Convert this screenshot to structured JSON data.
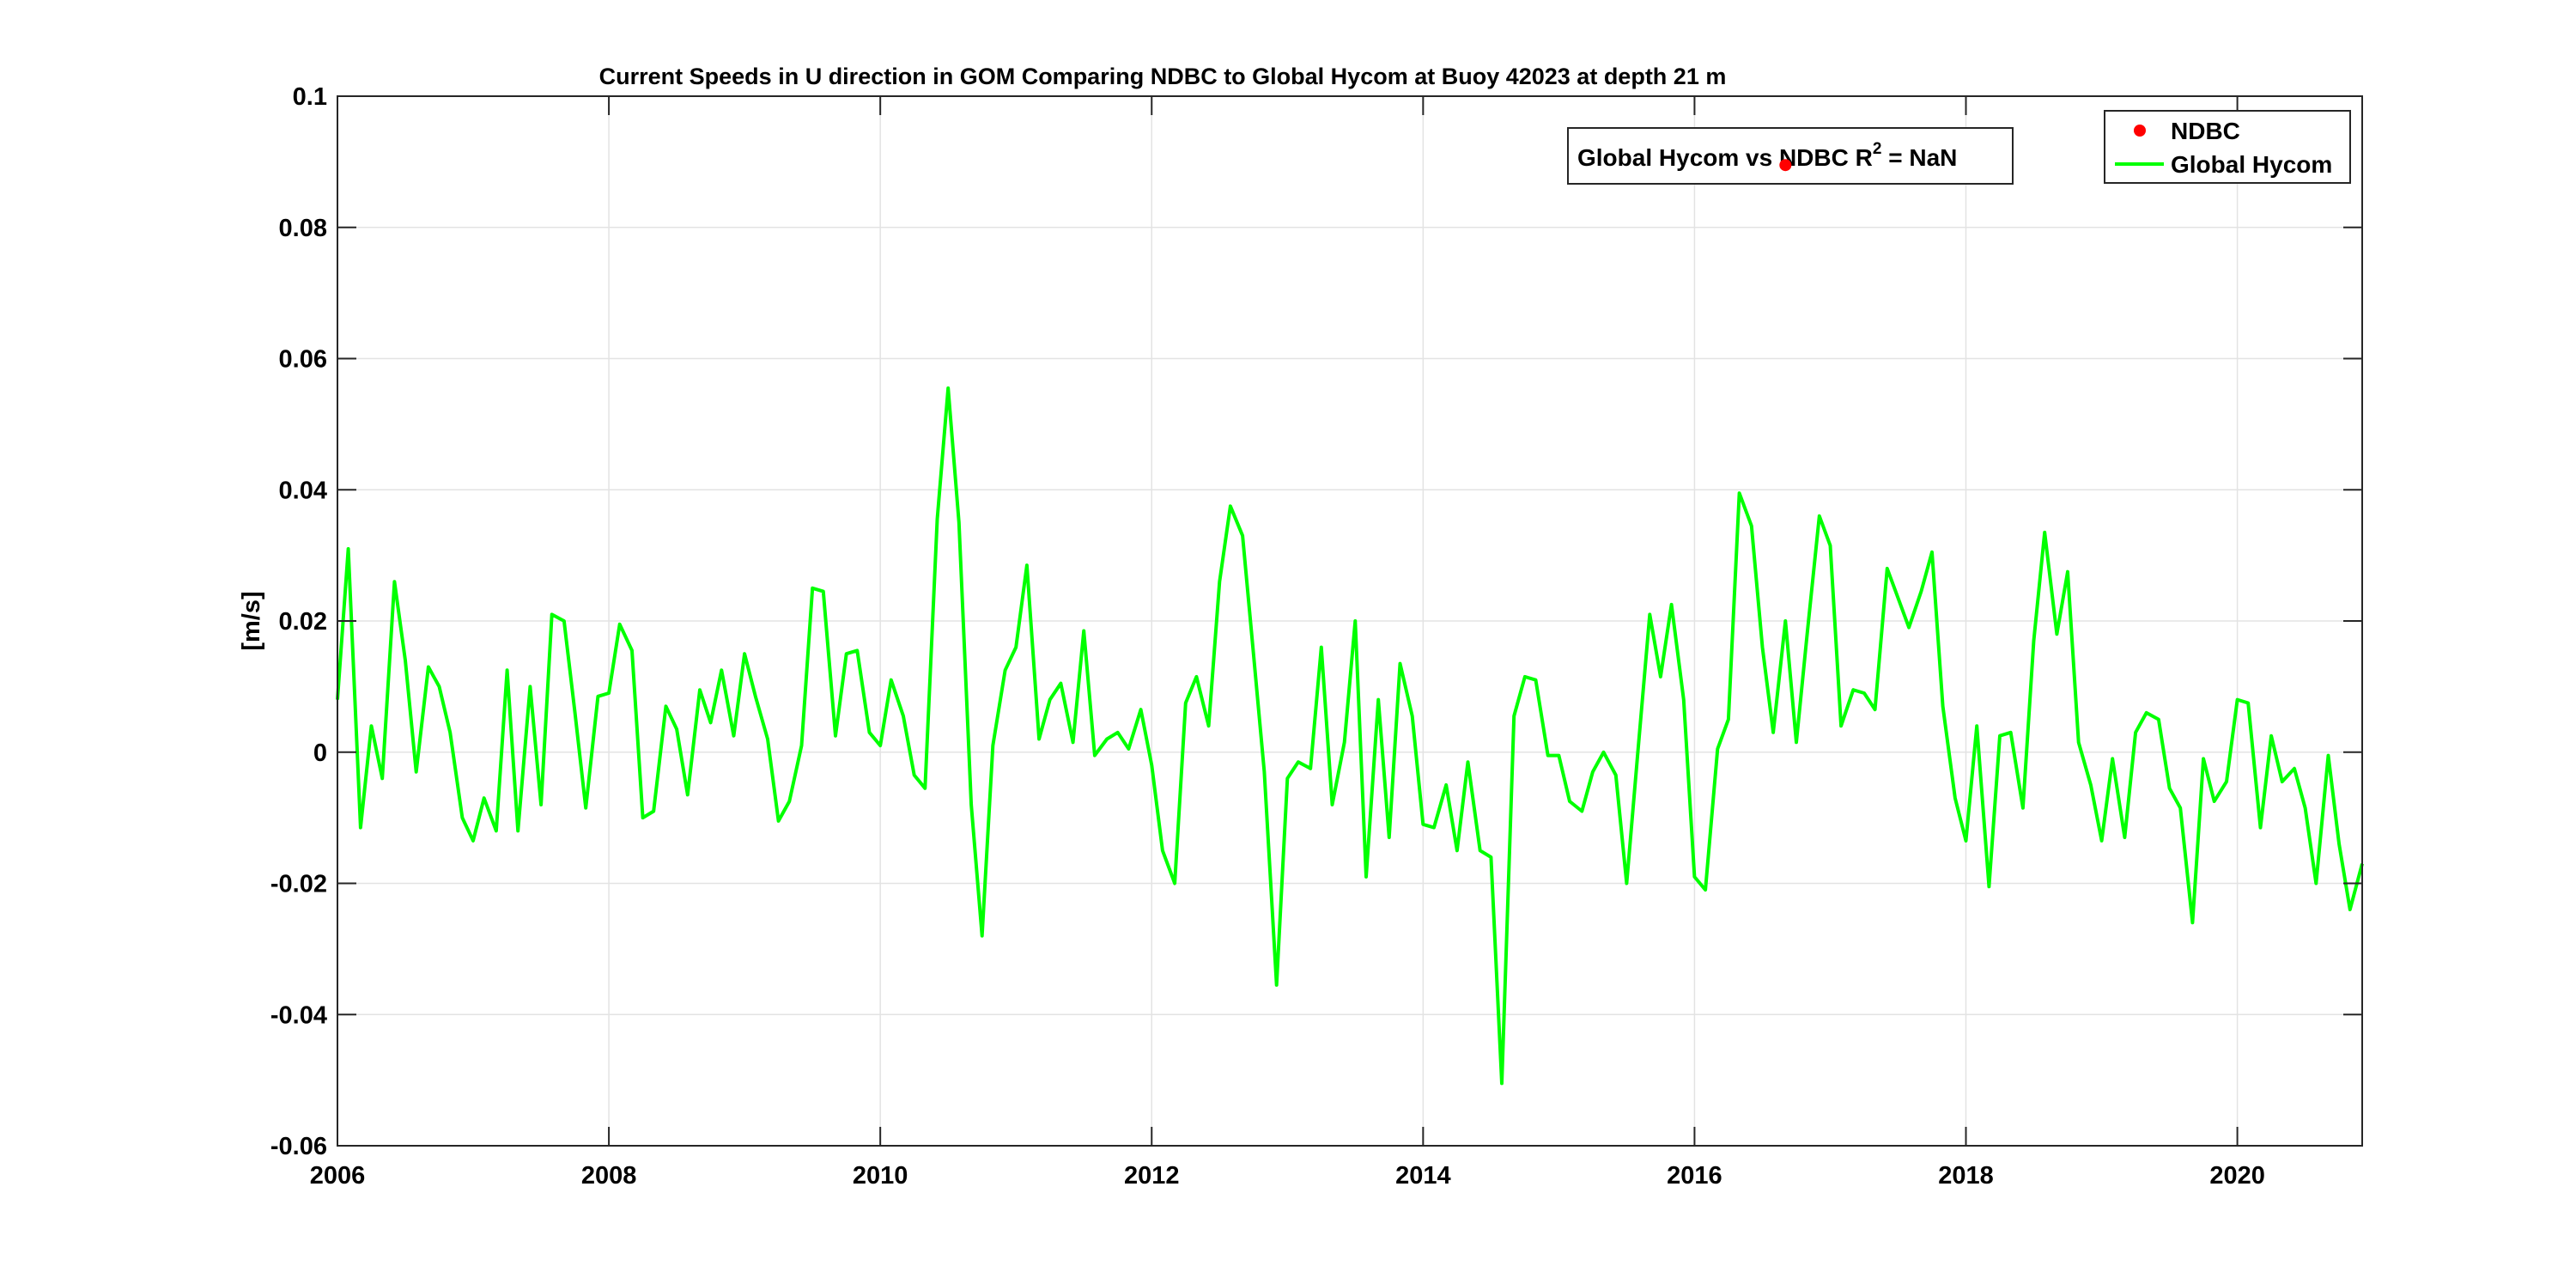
{
  "chart_data": {
    "type": "line",
    "title": "Current Speeds in U direction in GOM Comparing NDBC to Global Hycom at Buoy  42023  at depth  21 m",
    "xlabel": "",
    "ylabel": "[m/s]",
    "xlim": [
      2006,
      2020.92
    ],
    "ylim": [
      -0.06,
      0.1
    ],
    "grid": true,
    "legend_position": "top-right",
    "x_ticks": [
      "2006",
      "2008",
      "2010",
      "2012",
      "2014",
      "2016",
      "2018",
      "2020"
    ],
    "y_ticks": [
      "0.1",
      "0.08",
      "0.06",
      "0.04",
      "0.02",
      "0",
      "-0.02",
      "-0.04",
      "-0.06"
    ],
    "annotation": {
      "label": "Global Hycom vs NDBC R",
      "superscript": "2",
      "suffix": " = NaN"
    },
    "legend": [
      "NDBC",
      "Global Hycom"
    ],
    "series": [
      {
        "name": "NDBC",
        "style": "marker",
        "color": "#ff0000",
        "points": [
          [
            2016.67,
            0.0895
          ]
        ]
      },
      {
        "name": "Global Hycom",
        "style": "line",
        "color": "#00ff00",
        "x": [
          2006.0,
          2006.08,
          2006.17,
          2006.25,
          2006.33,
          2006.42,
          2006.5,
          2006.58,
          2006.67,
          2006.75,
          2006.83,
          2006.92,
          2007.0,
          2007.08,
          2007.17,
          2007.25,
          2007.33,
          2007.42,
          2007.5,
          2007.58,
          2007.67,
          2007.75,
          2007.83,
          2007.92,
          2008.0,
          2008.08,
          2008.17,
          2008.25,
          2008.33,
          2008.42,
          2008.5,
          2008.58,
          2008.67,
          2008.75,
          2008.83,
          2008.92,
          2009.0,
          2009.08,
          2009.17,
          2009.25,
          2009.33,
          2009.42,
          2009.5,
          2009.58,
          2009.67,
          2009.75,
          2009.83,
          2009.92,
          2010.0,
          2010.08,
          2010.17,
          2010.25,
          2010.33,
          2010.42,
          2010.5,
          2010.58,
          2010.67,
          2010.75,
          2010.83,
          2010.92,
          2011.0,
          2011.08,
          2011.17,
          2011.25,
          2011.33,
          2011.42,
          2011.5,
          2011.58,
          2011.67,
          2011.75,
          2011.83,
          2011.92,
          2012.0,
          2012.08,
          2012.17,
          2012.25,
          2012.33,
          2012.42,
          2012.5,
          2012.58,
          2012.67,
          2012.75,
          2012.83,
          2012.92,
          2013.0,
          2013.08,
          2013.17,
          2013.25,
          2013.33,
          2013.42,
          2013.5,
          2013.58,
          2013.67,
          2013.75,
          2013.83,
          2013.92,
          2014.0,
          2014.08,
          2014.17,
          2014.25,
          2014.33,
          2014.42,
          2014.5,
          2014.58,
          2014.67,
          2014.75,
          2014.83,
          2014.92,
          2015.0,
          2015.08,
          2015.17,
          2015.25,
          2015.33,
          2015.42,
          2015.5,
          2015.58,
          2015.67,
          2015.75,
          2015.83,
          2015.92,
          2016.0,
          2016.08,
          2016.17,
          2016.25,
          2016.33,
          2016.42,
          2016.5,
          2016.58,
          2016.67,
          2016.75,
          2016.83,
          2016.92,
          2017.0,
          2017.08,
          2017.17,
          2017.25,
          2017.33,
          2017.42,
          2017.5,
          2017.58,
          2017.67,
          2017.75,
          2017.83,
          2017.92,
          2018.0,
          2018.08,
          2018.17,
          2018.25,
          2018.33,
          2018.42,
          2018.5,
          2018.58,
          2018.67,
          2018.75,
          2018.83,
          2018.92,
          2019.0,
          2019.08,
          2019.17,
          2019.25,
          2019.33,
          2019.42,
          2019.5,
          2019.58,
          2019.67,
          2019.75,
          2019.83,
          2019.92,
          2020.0,
          2020.08,
          2020.17,
          2020.25,
          2020.33,
          2020.42,
          2020.5,
          2020.58,
          2020.67,
          2020.75,
          2020.83,
          2020.92
        ],
        "y": [
          0.008,
          0.031,
          -0.0115,
          0.004,
          -0.004,
          0.026,
          0.014,
          -0.003,
          0.013,
          0.01,
          0.003,
          -0.01,
          -0.0135,
          -0.007,
          -0.012,
          0.0125,
          -0.012,
          0.01,
          -0.008,
          0.021,
          0.02,
          0.006,
          -0.0085,
          0.0085,
          0.009,
          0.0195,
          0.0155,
          -0.01,
          -0.009,
          0.007,
          0.0035,
          -0.0065,
          0.0095,
          0.0045,
          0.0125,
          0.0025,
          0.015,
          0.0085,
          0.002,
          -0.0105,
          -0.0075,
          0.001,
          0.025,
          0.0245,
          0.0025,
          0.015,
          0.0155,
          0.003,
          0.001,
          0.011,
          0.0055,
          -0.0035,
          -0.0055,
          0.0355,
          0.0555,
          0.035,
          -0.008,
          -0.028,
          0.001,
          0.0125,
          0.016,
          0.0285,
          0.002,
          0.008,
          0.0105,
          0.0015,
          0.0185,
          -0.0005,
          0.002,
          0.003,
          0.0005,
          0.0065,
          -0.002,
          -0.015,
          -0.02,
          0.0075,
          0.0115,
          0.004,
          0.026,
          0.0375,
          0.033,
          0.015,
          -0.003,
          -0.0355,
          -0.004,
          -0.0015,
          -0.0025,
          0.016,
          -0.008,
          0.0015,
          0.02,
          -0.019,
          0.008,
          -0.013,
          0.0135,
          0.0055,
          -0.011,
          -0.0115,
          -0.005,
          -0.015,
          -0.0015,
          -0.015,
          -0.016,
          -0.0505,
          0.0055,
          0.0115,
          0.011,
          -0.0005,
          -0.0005,
          -0.0075,
          -0.009,
          -0.003,
          0.0,
          -0.0035,
          -0.02,
          -0.0005,
          0.021,
          0.0115,
          0.0225,
          0.008,
          -0.019,
          -0.021,
          0.0005,
          0.005,
          0.0395,
          0.0345,
          0.016,
          0.003,
          0.02,
          0.0015,
          0.018,
          0.036,
          0.0315,
          0.004,
          0.0095,
          0.009,
          0.0065,
          0.028,
          0.0235,
          0.019,
          0.0245,
          0.0305,
          0.007,
          -0.007,
          -0.0135,
          0.004,
          -0.0205,
          0.0025,
          0.003,
          -0.0085,
          0.017,
          0.0335,
          0.018,
          0.0275,
          0.0015,
          -0.005,
          -0.0135,
          -0.001,
          -0.013,
          0.003,
          0.006,
          0.005,
          -0.0055,
          -0.0085,
          -0.026,
          -0.001,
          -0.0075,
          -0.0045,
          0.008,
          0.0075,
          -0.0115,
          0.0025,
          -0.0045,
          -0.0025,
          -0.0085,
          -0.02,
          -0.0005,
          -0.014,
          -0.024,
          -0.017
        ]
      }
    ]
  }
}
